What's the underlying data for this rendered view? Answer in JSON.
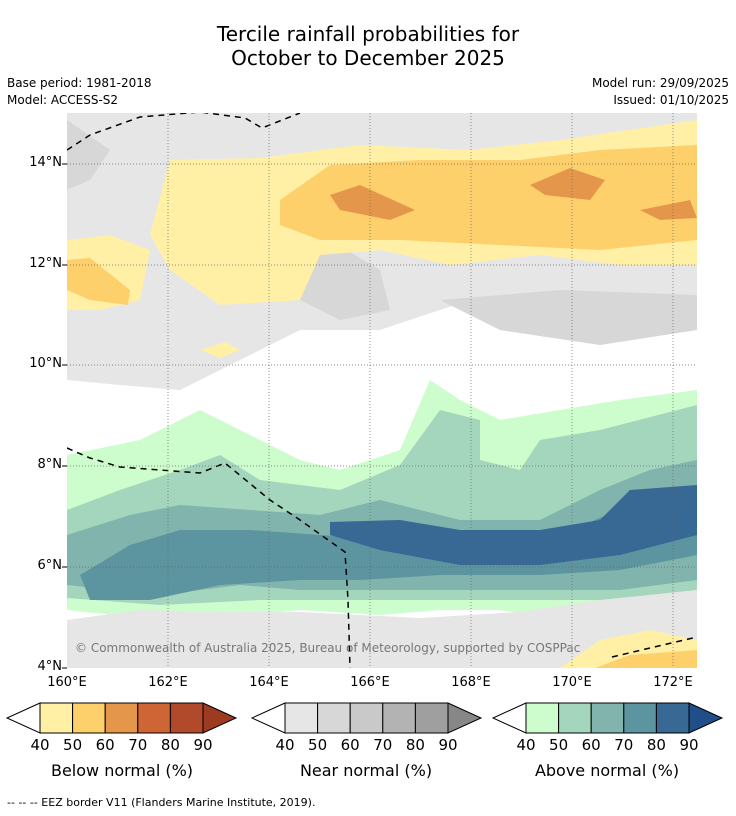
{
  "title_line1": "Tercile rainfall probabilities for",
  "title_line2": "October to December 2025",
  "meta_left": {
    "base_period": "Base period: 1981-2018",
    "model": "Model: ACCESS-S2"
  },
  "meta_right": {
    "model_run": "Model run: 29/09/2025",
    "issued": "Issued: 01/10/2025"
  },
  "copyright": "© Commonwealth of Australia 2025, Bureau of Meteorology, supported by COSPPac",
  "lat_labels": [
    "14°N",
    "12°N",
    "10°N",
    "8°N",
    "6°N",
    "4°N"
  ],
  "lon_labels": [
    "160°E",
    "162°E",
    "164°E",
    "166°E",
    "168°E",
    "170°E",
    "172°E"
  ],
  "legends": [
    {
      "title": "Below normal (%)",
      "ticks": [
        "40",
        "50",
        "60",
        "70",
        "80",
        "90"
      ],
      "colors": [
        "#fff0a5",
        "#fed06b",
        "#e4974a",
        "#cf6535",
        "#b04a2a",
        "#9c3a22"
      ]
    },
    {
      "title": "Near normal (%)",
      "ticks": [
        "40",
        "50",
        "60",
        "70",
        "80",
        "90"
      ],
      "colors": [
        "#e6e6e6",
        "#d7d7d7",
        "#c9c9c9",
        "#b3b3b3",
        "#9f9f9f",
        "#878787"
      ]
    },
    {
      "title": "Above normal (%)",
      "ticks": [
        "40",
        "50",
        "60",
        "70",
        "80",
        "90"
      ],
      "colors": [
        "#cdfccd",
        "#a3d6bc",
        "#80b4ac",
        "#5c95a0",
        "#386894",
        "#1f4e8a"
      ]
    }
  ],
  "footnote": "--  --  -- EEZ border V11 (Flanders Marine Institute, 2019)."
}
